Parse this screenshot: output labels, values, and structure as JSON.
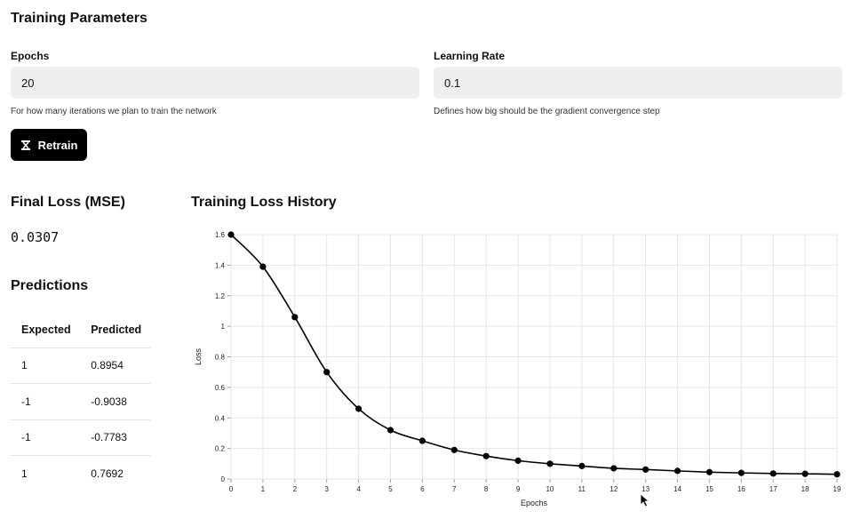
{
  "params": {
    "title": "Training Parameters",
    "epochs": {
      "label": "Epochs",
      "value": "20",
      "help": "For how many iterations we plan to train the network"
    },
    "learning_rate": {
      "label": "Learning Rate",
      "value": "0.1",
      "help": "Defines how big should be the gradient convergence step"
    },
    "retrain_label": "Retrain",
    "retrain_icon": "dumbbell-icon"
  },
  "final_loss": {
    "title": "Final Loss (MSE)",
    "value": "0.0307"
  },
  "predictions": {
    "title": "Predictions",
    "headers": [
      "Expected",
      "Predicted"
    ],
    "rows": [
      [
        "1",
        "0.8954"
      ],
      [
        "-1",
        "-0.9038"
      ],
      [
        "-1",
        "-0.7783"
      ],
      [
        "1",
        "0.7692"
      ]
    ]
  },
  "chart_data": {
    "type": "line",
    "title": "Training Loss History",
    "xlabel": "Epochs",
    "ylabel": "Loss",
    "x": [
      0,
      1,
      2,
      3,
      4,
      5,
      6,
      7,
      8,
      9,
      10,
      11,
      12,
      13,
      14,
      15,
      16,
      17,
      18,
      19
    ],
    "y": [
      1.6,
      1.39,
      1.06,
      0.7,
      0.46,
      0.32,
      0.25,
      0.19,
      0.15,
      0.12,
      0.1,
      0.085,
      0.07,
      0.062,
      0.053,
      0.045,
      0.04,
      0.036,
      0.034,
      0.031
    ],
    "xlim": [
      0,
      19
    ],
    "ylim": [
      0,
      1.6
    ],
    "yticks": [
      0,
      0.2,
      0.4,
      0.6,
      0.8,
      1,
      1.2,
      1.4,
      1.6
    ],
    "grid": true,
    "line_color": "#000000",
    "grid_color": "#e6e6e6"
  }
}
